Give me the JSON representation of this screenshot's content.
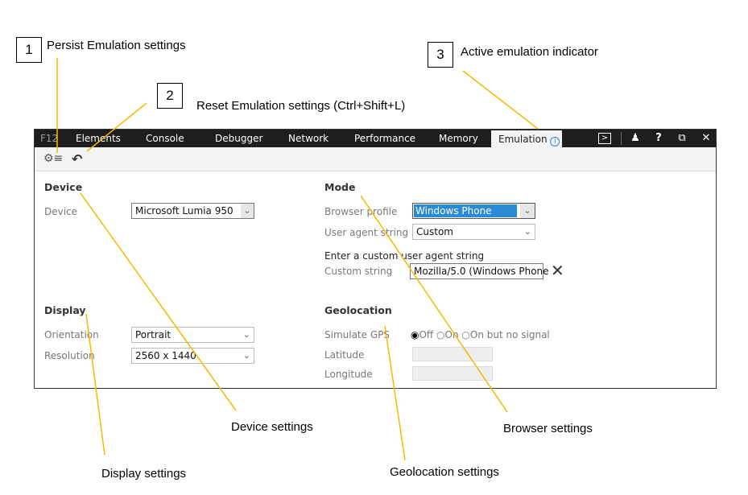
{
  "callouts": [
    {
      "number": "1",
      "label": "Persist Emulation settings"
    },
    {
      "number": "2",
      "label": "Reset Emulation settings (Ctrl+Shift+L)"
    },
    {
      "number": "3",
      "label": "Active emulation indicator"
    },
    {
      "label": "Device settings"
    },
    {
      "label": "Display settings"
    },
    {
      "label": "Browser settings"
    },
    {
      "label": "Geolocation settings"
    }
  ],
  "tabs": [
    "F12",
    "Elements",
    "Console",
    "Debugger",
    "Network",
    "Performance",
    "Memory",
    "Emulation"
  ],
  "active_tab": "Emulation",
  "accent": "#f5b800",
  "device": {
    "header": "Device",
    "device_label": "Device",
    "device_value": "Microsoft Lumia 950"
  },
  "display": {
    "header": "Display",
    "orientation_label": "Orientation",
    "orientation_value": "Portrait",
    "resolution_label": "Resolution",
    "resolution_value": "2560 x 1440"
  },
  "mode": {
    "header": "Mode",
    "browser_profile_label": "Browser profile",
    "browser_profile_value": "Windows Phone",
    "ua_label": "User agent string",
    "ua_value": "Custom",
    "custom_prompt": "Enter a custom user agent string",
    "custom_label": "Custom string",
    "custom_value": "Mozilla/5.0 (Windows Phone"
  },
  "geo": {
    "header": "Geolocation",
    "gps_label": "Simulate GPS",
    "options": [
      "Off",
      "On",
      "On but no signal"
    ],
    "selected": "Off",
    "latitude_label": "Latitude",
    "latitude_value": "",
    "longitude_label": "Longitude",
    "longitude_value": ""
  }
}
